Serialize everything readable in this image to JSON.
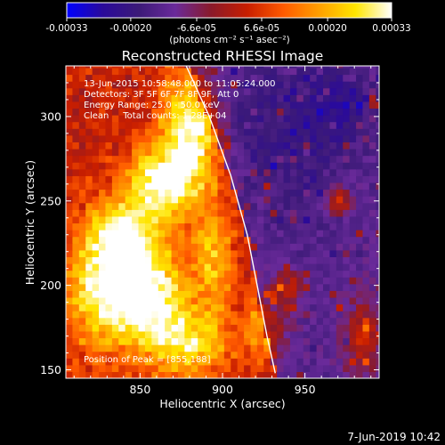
{
  "chart_data": {
    "type": "heatmap",
    "title": "Reconstructed RHESSI Image",
    "xlabel": "Heliocentric X (arcsec)",
    "ylabel": "Heliocentric Y (arcsec)",
    "xlim": [
      805,
      995
    ],
    "ylim": [
      145,
      330
    ],
    "xticks": [
      850,
      900,
      950
    ],
    "yticks": [
      150,
      200,
      250,
      300
    ],
    "colorbar": {
      "label": "(photons cm⁻² s⁻¹ asec⁻²)",
      "range": [
        -0.00033,
        0.00033
      ],
      "tick_values": [
        -0.00033,
        -0.0002,
        -6.6e-05,
        6.6e-05,
        0.0002,
        0.00033
      ],
      "tick_labels": [
        "-0.00033",
        "-0.00020",
        "-6.6e-05",
        "6.6e-05",
        "0.00020",
        "0.00033"
      ],
      "stops": [
        "#0000ff",
        "#2a0a9a",
        "#3c1a78",
        "#6a2a9a",
        "#8a1a2a",
        "#c81e00",
        "#ff5a00",
        "#ffa000",
        "#ffe600",
        "#ffffff"
      ]
    },
    "annotations": [
      "13-Jun-2015 10:58:48.000 to 11:05:24.000",
      "Detectors: 3F 5F 6F 7F 8F 9F, Att 0",
      "Energy Range: 25.0 - 50.0 keV",
      "Clean     Total counts: 1.28E+04",
      "Position of Peak = [855,188]"
    ],
    "peak": [
      855,
      188
    ],
    "limb": [
      [
        878,
        330
      ],
      [
        892,
        300
      ],
      [
        905,
        265
      ],
      [
        915,
        230
      ],
      [
        922,
        195
      ],
      [
        927,
        170
      ],
      [
        932,
        148
      ]
    ],
    "hot_regions": [
      {
        "x": 880,
        "y": 290,
        "sx": 12,
        "sy": 26,
        "v": 1.0
      },
      {
        "x": 860,
        "y": 260,
        "sx": 14,
        "sy": 16,
        "v": 0.9
      },
      {
        "x": 855,
        "y": 195,
        "sx": 16,
        "sy": 22,
        "v": 1.1
      },
      {
        "x": 825,
        "y": 200,
        "sx": 14,
        "sy": 26,
        "v": 0.85
      },
      {
        "x": 840,
        "y": 230,
        "sx": 12,
        "sy": 14,
        "v": 0.7
      },
      {
        "x": 880,
        "y": 165,
        "sx": 16,
        "sy": 14,
        "v": 0.75
      },
      {
        "x": 895,
        "y": 215,
        "sx": 8,
        "sy": 24,
        "v": 0.6
      },
      {
        "x": 925,
        "y": 175,
        "sx": 10,
        "sy": 14,
        "v": 0.5
      },
      {
        "x": 940,
        "y": 200,
        "sx": 6,
        "sy": 6,
        "v": 0.55
      },
      {
        "x": 970,
        "y": 250,
        "sx": 6,
        "sy": 6,
        "v": 0.6
      },
      {
        "x": 985,
        "y": 170,
        "sx": 8,
        "sy": 16,
        "v": 0.55
      }
    ],
    "cold_regions": [
      {
        "x": 965,
        "y": 305,
        "sx": 18,
        "sy": 18,
        "v": 0.45
      },
      {
        "x": 920,
        "y": 300,
        "sx": 12,
        "sy": 30,
        "v": 0.25
      },
      {
        "x": 950,
        "y": 260,
        "sx": 14,
        "sy": 20,
        "v": 0.2
      }
    ]
  },
  "footer": {
    "date_stamp": "7-Jun-2019 10:42"
  }
}
